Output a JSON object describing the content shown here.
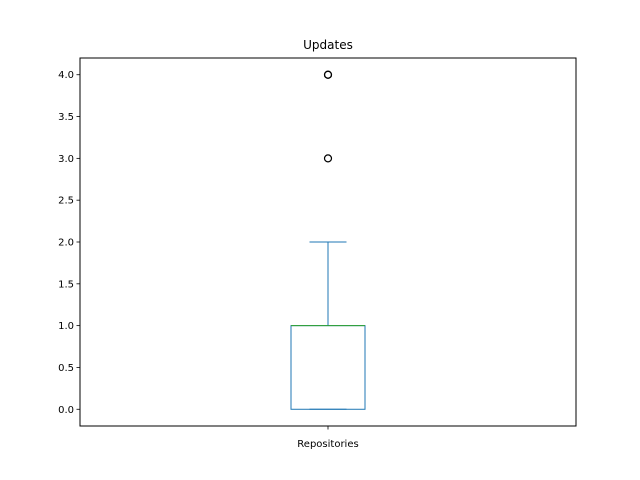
{
  "chart_data": {
    "type": "box",
    "title": "Updates",
    "categories": [
      "Repositories"
    ],
    "ylim": [
      -0.2,
      4.2
    ],
    "yticks": [
      0.0,
      0.5,
      1.0,
      1.5,
      2.0,
      2.5,
      3.0,
      3.5,
      4.0
    ],
    "ytick_labels": [
      "0.0",
      "0.5",
      "1.0",
      "1.5",
      "2.0",
      "2.5",
      "3.0",
      "3.5",
      "4.0"
    ],
    "box": {
      "q1": 0.0,
      "median": 1.0,
      "q3": 1.0,
      "whisker_low": 0.0,
      "whisker_high": 2.0,
      "outliers": [
        3.0,
        4.0,
        4.0
      ]
    },
    "grid": false,
    "colors": {
      "box": "#1f77b4",
      "median": "#2ca02c",
      "outlier_edge": "#000000",
      "axes": "#000000"
    }
  }
}
